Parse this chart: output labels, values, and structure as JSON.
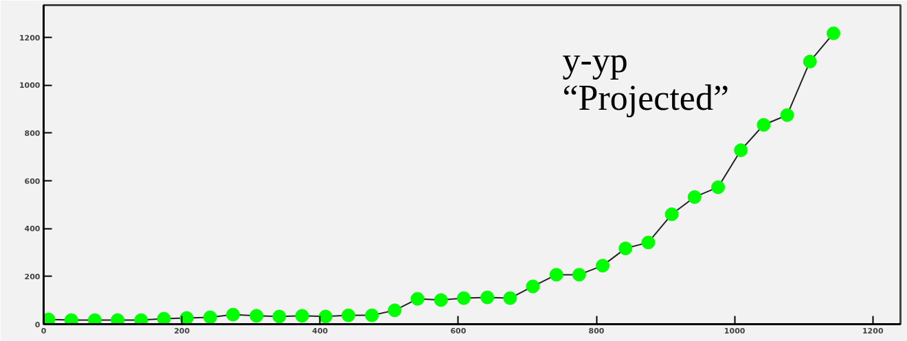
{
  "chart_data": {
    "type": "line",
    "annotations": [
      "y-yp",
      "“Projected”"
    ],
    "x": [
      7,
      40,
      74,
      107,
      141,
      174,
      207,
      241,
      274,
      308,
      341,
      374,
      408,
      441,
      475,
      508,
      541,
      575,
      608,
      642,
      675,
      708,
      742,
      775,
      809,
      842,
      875,
      909,
      942,
      976,
      1009,
      1042,
      1076,
      1109,
      1143
    ],
    "series": [
      {
        "color": "#00ff00",
        "values": [
          20,
          17,
          17,
          17,
          17,
          23,
          26,
          29,
          40,
          35,
          32,
          35,
          32,
          37,
          37,
          58,
          106,
          101,
          109,
          112,
          109,
          158,
          207,
          207,
          245,
          317,
          342,
          460,
          532,
          573,
          728,
          834,
          875,
          1099,
          1217
        ]
      }
    ],
    "xlim": [
      0,
      1240
    ],
    "ylim": [
      0,
      1335
    ],
    "xticks": [
      0,
      200,
      400,
      600,
      800,
      1000,
      1200
    ],
    "yticks": [
      0,
      200,
      400,
      600,
      800,
      1000,
      1200
    ],
    "grid": false,
    "marker": "circle",
    "line_style": "solid"
  }
}
